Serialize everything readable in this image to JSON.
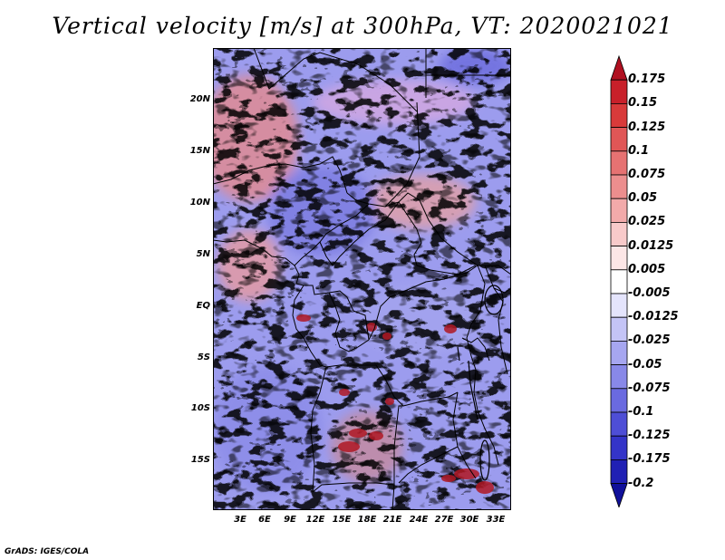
{
  "title": "Vertical velocity [m/s] at 300hPa, VT: 2020021021",
  "credit": "GrADS: IGES/COLA",
  "lat_labels": [
    "20N",
    "15N",
    "10N",
    "5N",
    "EQ",
    "5S",
    "10S",
    "15S"
  ],
  "lon_labels": [
    "3E",
    "6E",
    "9E",
    "12E",
    "15E",
    "18E",
    "21E",
    "24E",
    "27E",
    "30E",
    "33E"
  ],
  "colorbar": {
    "levels": [
      "0.175",
      "0.15",
      "0.125",
      "0.1",
      "0.075",
      "0.05",
      "0.025",
      "0.0125",
      "0.005",
      "-0.005",
      "-0.0125",
      "-0.025",
      "-0.05",
      "-0.075",
      "-0.1",
      "-0.125",
      "-0.175",
      "-0.2"
    ],
    "colors": [
      "#b01020",
      "#c8202a",
      "#d83a3a",
      "#e05656",
      "#e67272",
      "#ec8e8e",
      "#f2aaaa",
      "#f8caca",
      "#fce6e6",
      "#ffffff",
      "#e4e4fc",
      "#c4c4f6",
      "#a6a6f0",
      "#8888e8",
      "#6a6ae0",
      "#4e4ed6",
      "#3434c8",
      "#2020b4",
      "#10109a"
    ]
  }
}
